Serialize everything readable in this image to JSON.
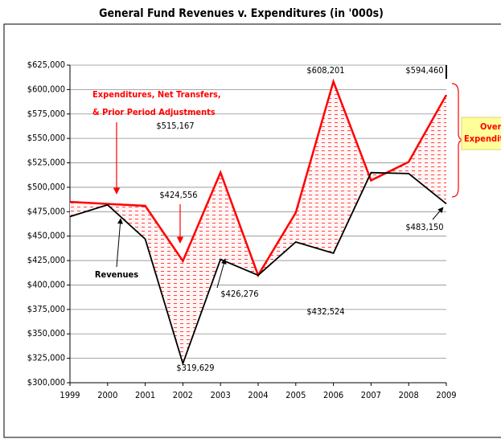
{
  "chart_data": {
    "type": "line",
    "title": "General Fund Revenues v. Expenditures (in '000s)",
    "categories": [
      "1999",
      "2000",
      "2001",
      "2002",
      "2003",
      "2004",
      "2005",
      "2006",
      "2007",
      "2008",
      "2009"
    ],
    "series": [
      {
        "name": "Expenditures",
        "color": "#ff0000",
        "values": [
          485000,
          483000,
          481000,
          424556,
          515167,
          410000,
          474000,
          608201,
          507000,
          526000,
          594460
        ],
        "value_labels": [
          null,
          null,
          null,
          "$424,556",
          "$515,167",
          null,
          null,
          "$608,201",
          null,
          null,
          "$594,460"
        ]
      },
      {
        "name": "Revenues",
        "color": "#000000",
        "values": [
          470000,
          482000,
          447000,
          319629,
          426276,
          410000,
          444000,
          432524,
          515000,
          514000,
          483150
        ],
        "value_labels": [
          null,
          null,
          null,
          "$319,629",
          "$426,276",
          null,
          null,
          "$432,524",
          null,
          null,
          "$483,150"
        ]
      }
    ],
    "ylim": [
      300000,
      625000
    ],
    "yticks": [
      {
        "value": 300000,
        "label": "$300,000"
      },
      {
        "value": 325000,
        "label": "$325,000"
      },
      {
        "value": 350000,
        "label": "$350,000"
      },
      {
        "value": 375000,
        "label": "$375,000"
      },
      {
        "value": 400000,
        "label": "$400,000"
      },
      {
        "value": 425000,
        "label": "$425,000"
      },
      {
        "value": 450000,
        "label": "$450,000"
      },
      {
        "value": 475000,
        "label": "$475,000"
      },
      {
        "value": 500000,
        "label": "$500,000"
      },
      {
        "value": 525000,
        "label": "$525,000"
      },
      {
        "value": 550000,
        "label": "$550,000"
      },
      {
        "value": 575000,
        "label": "$575,000"
      },
      {
        "value": 600000,
        "label": "$600,000"
      },
      {
        "value": 625000,
        "label": "$625,000"
      }
    ],
    "grid": true,
    "annotations": [
      "Expenditures, Net Transfers,",
      "& Prior Period Adjustments",
      "Over-",
      "Expenditure"
    ]
  }
}
